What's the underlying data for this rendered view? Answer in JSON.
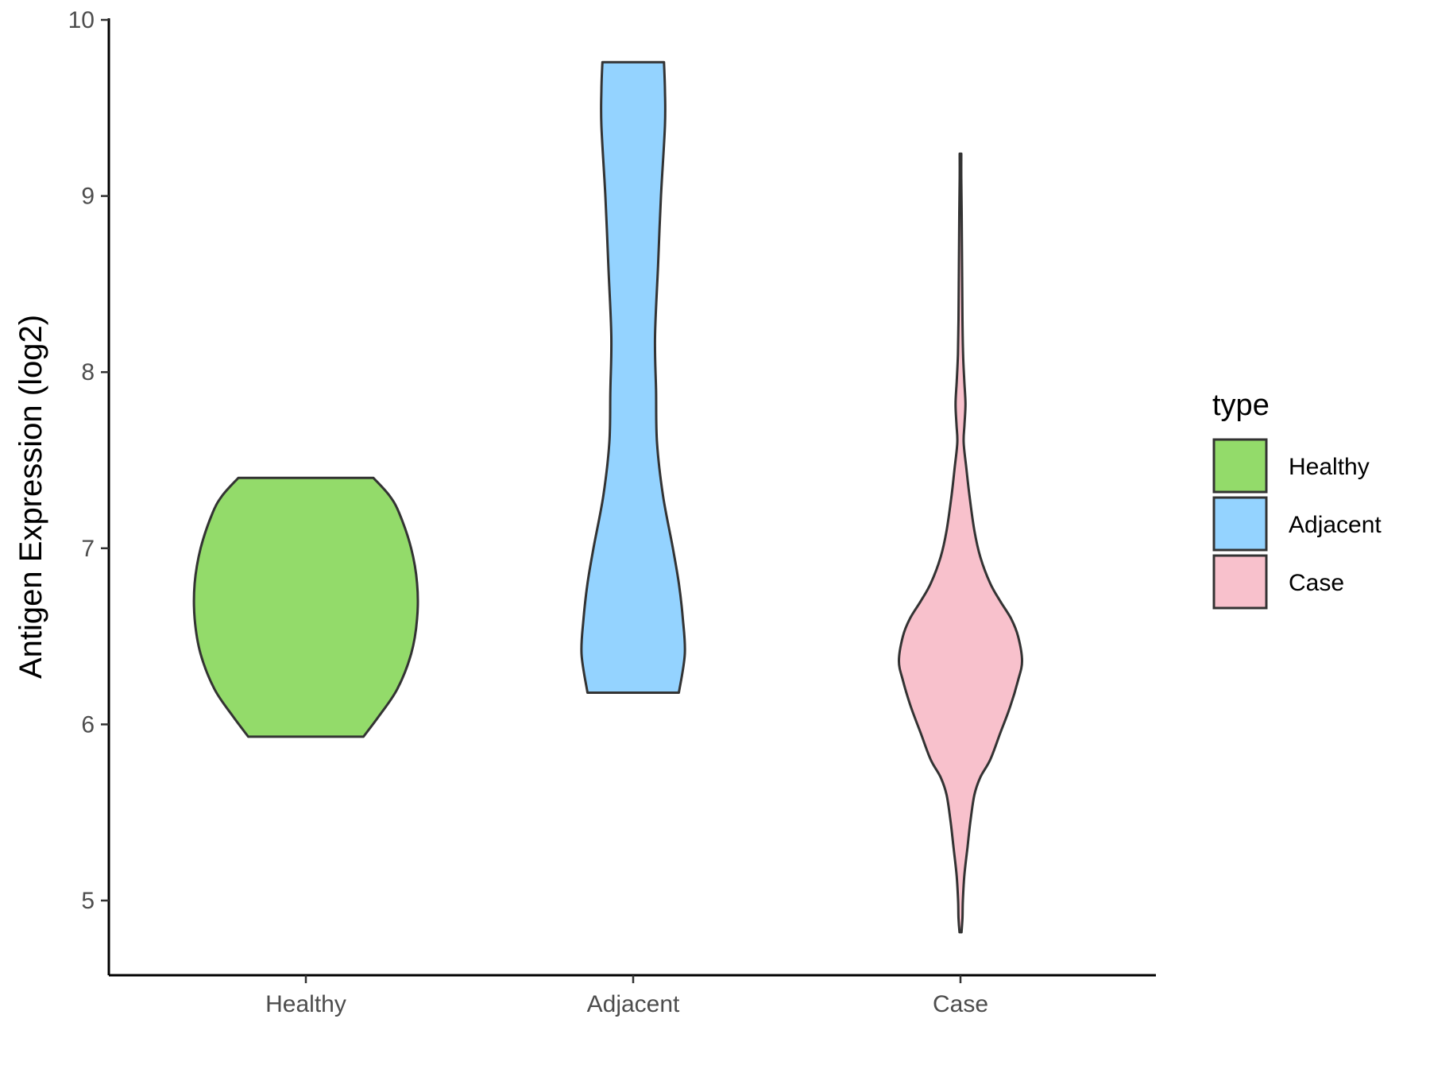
{
  "chart_data": {
    "type": "violin",
    "title": "",
    "xlabel": "",
    "ylabel": "Antigen Expression (log2)",
    "ylim": [
      4.58,
      10.0
    ],
    "yticks": [
      5,
      6,
      7,
      8,
      9,
      10
    ],
    "categories": [
      "Healthy",
      "Adjacent",
      "Case"
    ],
    "grid": false,
    "legend": {
      "title": "type",
      "position": "right",
      "entries": [
        {
          "label": "Healthy",
          "color": "#93DB6A"
        },
        {
          "label": "Adjacent",
          "color": "#94D3FF"
        },
        {
          "label": "Case",
          "color": "#F8C1CC"
        }
      ]
    },
    "series": [
      {
        "category": "Healthy",
        "color": "#93DB6A",
        "min": 5.93,
        "max": 7.4,
        "density_profile": [
          [
            5.93,
            0.29
          ],
          [
            6.05,
            0.37
          ],
          [
            6.2,
            0.46
          ],
          [
            6.4,
            0.53
          ],
          [
            6.6,
            0.56
          ],
          [
            6.8,
            0.56
          ],
          [
            7.0,
            0.53
          ],
          [
            7.2,
            0.47
          ],
          [
            7.3,
            0.42
          ],
          [
            7.4,
            0.34
          ]
        ]
      },
      {
        "category": "Adjacent",
        "color": "#94D3FF",
        "min": 6.18,
        "max": 9.76,
        "density_profile": [
          [
            6.18,
            0.23
          ],
          [
            6.4,
            0.26
          ],
          [
            6.6,
            0.25
          ],
          [
            6.8,
            0.23
          ],
          [
            7.0,
            0.2
          ],
          [
            7.3,
            0.15
          ],
          [
            7.6,
            0.12
          ],
          [
            7.9,
            0.115
          ],
          [
            8.2,
            0.11
          ],
          [
            8.6,
            0.125
          ],
          [
            9.0,
            0.14
          ],
          [
            9.4,
            0.16
          ],
          [
            9.6,
            0.16
          ],
          [
            9.76,
            0.155
          ]
        ]
      },
      {
        "category": "Case",
        "color": "#F8C1CC",
        "min": 4.82,
        "max": 9.24,
        "density_profile": [
          [
            4.82,
            0.005
          ],
          [
            4.9,
            0.01
          ],
          [
            5.0,
            0.012
          ],
          [
            5.15,
            0.02
          ],
          [
            5.3,
            0.035
          ],
          [
            5.45,
            0.05
          ],
          [
            5.6,
            0.07
          ],
          [
            5.7,
            0.1
          ],
          [
            5.8,
            0.15
          ],
          [
            5.95,
            0.2
          ],
          [
            6.1,
            0.25
          ],
          [
            6.25,
            0.29
          ],
          [
            6.36,
            0.31
          ],
          [
            6.5,
            0.29
          ],
          [
            6.6,
            0.255
          ],
          [
            6.7,
            0.2
          ],
          [
            6.8,
            0.15
          ],
          [
            6.95,
            0.1
          ],
          [
            7.1,
            0.07
          ],
          [
            7.3,
            0.045
          ],
          [
            7.45,
            0.03
          ],
          [
            7.6,
            0.016
          ],
          [
            7.7,
            0.02
          ],
          [
            7.82,
            0.025
          ],
          [
            7.95,
            0.019
          ],
          [
            8.1,
            0.013
          ],
          [
            8.3,
            0.01
          ],
          [
            8.6,
            0.008
          ],
          [
            8.9,
            0.006
          ],
          [
            9.1,
            0.004
          ],
          [
            9.24,
            0.004
          ]
        ]
      }
    ]
  }
}
